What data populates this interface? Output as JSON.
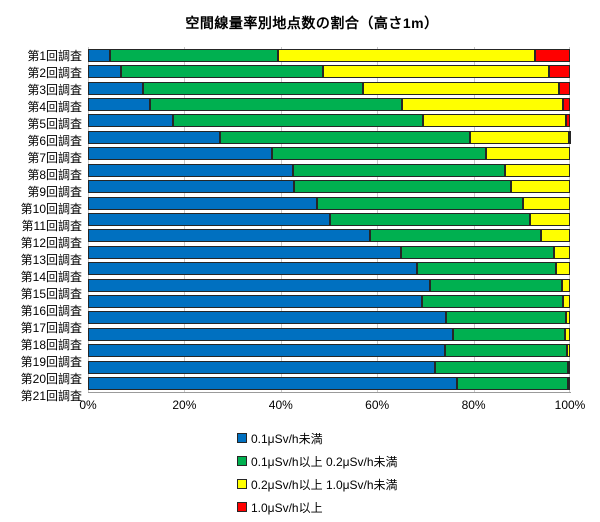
{
  "chart_data": {
    "type": "bar",
    "orientation": "horizontal",
    "stacked": true,
    "units": "percent",
    "title": "空間線量率別地点数の割合（高さ1m）",
    "categories": [
      "第1回調査",
      "第2回調査",
      "第3回調査",
      "第4回調査",
      "第5回調査",
      "第6回調査",
      "第7回調査",
      "第8回調査",
      "第9回調査",
      "第10回調査",
      "第11回調査",
      "第12回調査",
      "第13回調査",
      "第14回調査",
      "第15回調査",
      "第16回調査",
      "第17回調査",
      "第18回調査",
      "第19回調査",
      "第20回調査",
      "第21回調査"
    ],
    "series": [
      {
        "name": "0.1μSv/h未満",
        "color": "#0070C0",
        "values": [
          4.6,
          6.9,
          11.5,
          12.9,
          17.7,
          27.4,
          38.2,
          42.6,
          42.8,
          47.6,
          50.2,
          58.5,
          65.0,
          68.2,
          71.0,
          69.3,
          74.2,
          75.7,
          74.0,
          72.0,
          76.6
        ]
      },
      {
        "name": "0.1μSv/h以上 0.2μSv/h未満",
        "color": "#00B050",
        "values": [
          34.9,
          41.9,
          45.5,
          52.2,
          51.7,
          51.8,
          44.4,
          43.9,
          44.9,
          42.7,
          41.5,
          35.5,
          31.7,
          28.9,
          27.3,
          29.2,
          25.0,
          23.3,
          25.3,
          27.5,
          23.0
        ]
      },
      {
        "name": "0.2μSv/h以上 1.0μSv/h未満",
        "color": "#FFFF00",
        "values": [
          53.2,
          46.8,
          40.8,
          33.5,
          29.8,
          20.5,
          17.4,
          13.5,
          12.3,
          9.7,
          8.3,
          6.0,
          3.3,
          2.9,
          1.7,
          1.5,
          0.8,
          1.0,
          0.7,
          0.5,
          0.4
        ]
      },
      {
        "name": "1.0μSv/h以上",
        "color": "#FF0000",
        "values": [
          7.3,
          4.4,
          2.2,
          1.4,
          0.8,
          0.3,
          0,
          0,
          0,
          0,
          0,
          0,
          0,
          0,
          0,
          0,
          0,
          0,
          0,
          0,
          0
        ]
      }
    ],
    "x_ticks": [
      "0%",
      "20%",
      "40%",
      "60%",
      "80%",
      "100%"
    ],
    "xlim": [
      0,
      100
    ],
    "grid": true,
    "grid_color": "#C9C9C9",
    "legend_position": "bottom-left-stacked"
  }
}
